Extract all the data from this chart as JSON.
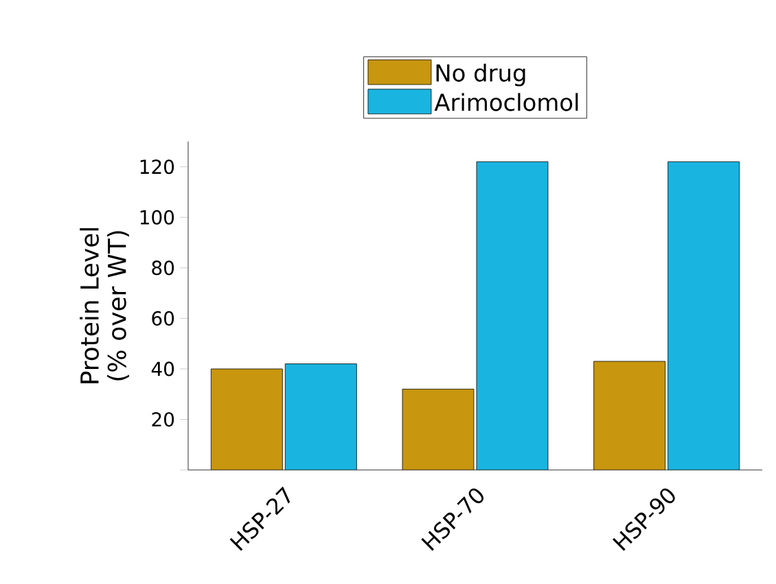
{
  "chart_data": {
    "type": "bar",
    "ylabel": "Protein Level (% over WT)",
    "categories": [
      "HSP-27",
      "HSP-70",
      "HSP-90"
    ],
    "series": [
      {
        "name": "No drug",
        "color": "#c8960f",
        "values": [
          40,
          32,
          43
        ]
      },
      {
        "name": "Arimoclomol",
        "color": "#1ab4e0",
        "values": [
          42,
          122,
          122
        ]
      }
    ],
    "ylim": [
      0,
      130
    ],
    "yticks": [
      {
        "value": 0,
        "label": null
      },
      20,
      40,
      60,
      80,
      100,
      120
    ],
    "legend": "top",
    "grid": false
  }
}
